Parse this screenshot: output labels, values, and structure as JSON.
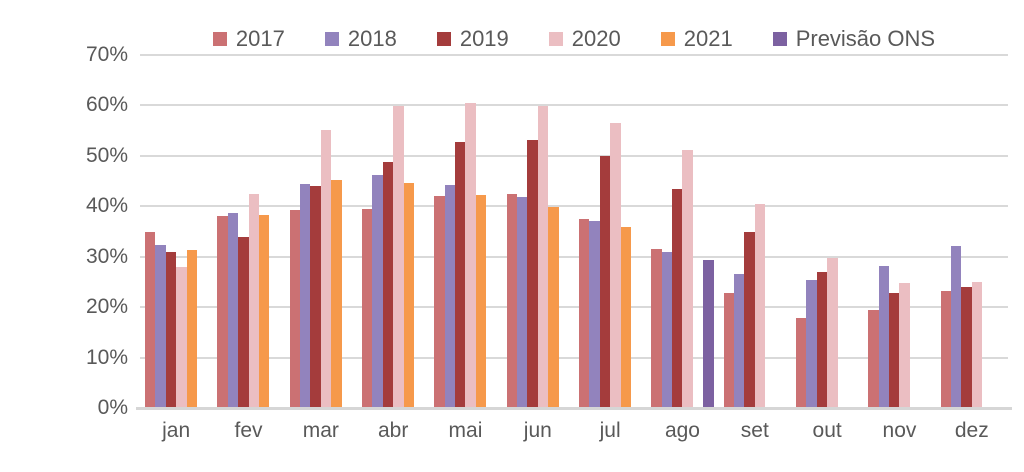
{
  "chart_data": {
    "type": "bar",
    "title": "",
    "xlabel": "",
    "ylabel": "",
    "categories": [
      "jan",
      "fev",
      "mar",
      "abr",
      "mai",
      "jun",
      "jul",
      "ago",
      "set",
      "out",
      "nov",
      "dez"
    ],
    "series": [
      {
        "name": "2017",
        "color": "#CB7173",
        "values": [
          35.0,
          38.0,
          39.2,
          39.5,
          42.0,
          42.5,
          37.4,
          31.6,
          22.8,
          17.9,
          19.5,
          23.3
        ]
      },
      {
        "name": "2018",
        "color": "#9283BD",
        "values": [
          32.4,
          38.6,
          44.4,
          46.2,
          44.2,
          41.8,
          37.1,
          31.0,
          26.6,
          25.4,
          28.2,
          32.2
        ]
      },
      {
        "name": "2019",
        "color": "#A43C3C",
        "values": [
          31.0,
          33.9,
          44.1,
          48.7,
          52.7,
          53.2,
          50.0,
          43.4,
          35.0,
          27.0,
          22.8,
          23.9
        ]
      },
      {
        "name": "2020",
        "color": "#EBBEC2",
        "values": [
          28.0,
          42.5,
          55.2,
          59.8,
          60.5,
          59.8,
          56.5,
          51.1,
          40.5,
          29.8,
          24.8,
          24.9
        ]
      },
      {
        "name": "2021",
        "color": "#F6994B",
        "values": [
          31.3,
          38.3,
          45.3,
          44.6,
          42.2,
          39.8,
          35.8,
          null,
          null,
          null,
          null,
          null
        ]
      },
      {
        "name": "Previsão ONS",
        "color": "#7C61A1",
        "values": [
          null,
          null,
          null,
          null,
          null,
          null,
          null,
          29.4,
          null,
          null,
          null,
          null
        ]
      }
    ],
    "ylim": [
      0,
      70
    ],
    "ytick_step": 10,
    "yticks": [
      "0%",
      "10%",
      "20%",
      "30%",
      "40%",
      "50%",
      "60%",
      "70%"
    ],
    "grid": true,
    "legend_position": "top"
  },
  "colors": {
    "grid": "#D9D9D9",
    "axis_line": "#D6D6D6",
    "axis_text": "#595959",
    "background": "#FFFFFF"
  }
}
